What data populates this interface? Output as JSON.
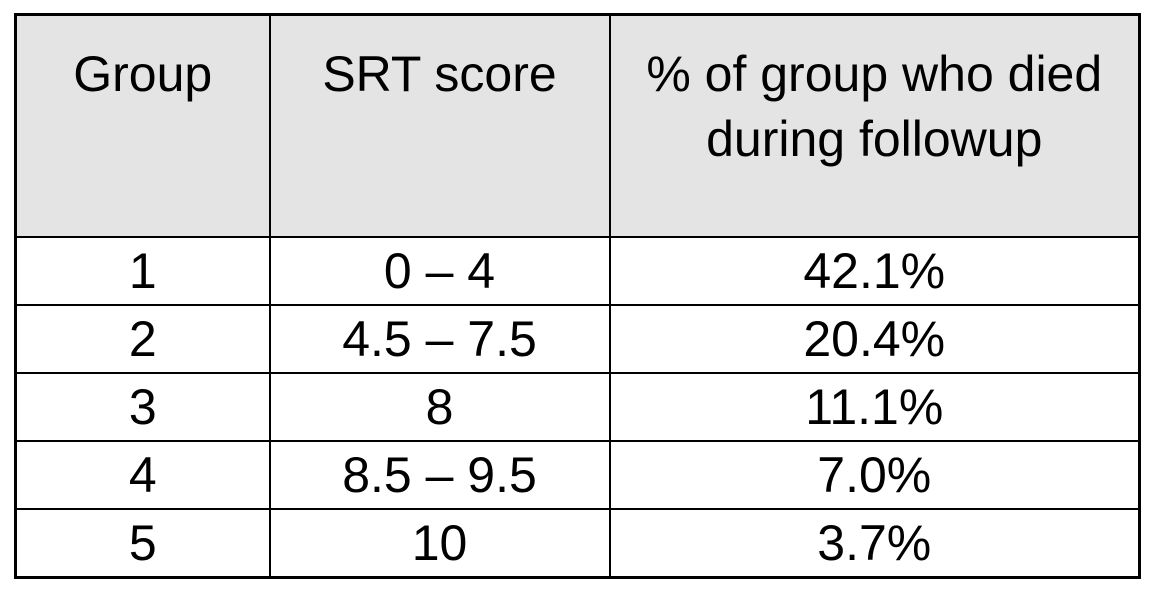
{
  "table": {
    "columns": [
      {
        "label": "Group"
      },
      {
        "label": "SRT score"
      },
      {
        "label": "% of group who died during followup"
      }
    ],
    "rows": [
      {
        "group": "1",
        "srt_score": "0 – 4",
        "pct_died": "42.1%"
      },
      {
        "group": "2",
        "srt_score": "4.5 – 7.5",
        "pct_died": "20.4%"
      },
      {
        "group": "3",
        "srt_score": "8",
        "pct_died": "11.1%"
      },
      {
        "group": "4",
        "srt_score": "8.5 – 9.5",
        "pct_died": "7.0%"
      },
      {
        "group": "5",
        "srt_score": "10",
        "pct_died": "3.7%"
      }
    ],
    "colors": {
      "header_bg": "#e4e4e4",
      "border": "#000000",
      "text": "#000000",
      "page_bg": "#ffffff"
    }
  },
  "chart_data": {
    "type": "table",
    "title": "",
    "columns": [
      "Group",
      "SRT score",
      "% of group who died during followup"
    ],
    "rows": [
      [
        "1",
        "0 – 4",
        "42.1%"
      ],
      [
        "2",
        "4.5 – 7.5",
        "20.4%"
      ],
      [
        "3",
        "8",
        "11.1%"
      ],
      [
        "4",
        "8.5 – 9.5",
        "7.0%"
      ],
      [
        "5",
        "10",
        "3.7%"
      ]
    ],
    "groups": [
      1,
      2,
      3,
      4,
      5
    ],
    "srt_score_ranges": [
      "0–4",
      "4.5–7.5",
      "8",
      "8.5–9.5",
      "10"
    ],
    "pct_died_values": [
      42.1,
      20.4,
      11.1,
      7.0,
      3.7
    ]
  }
}
